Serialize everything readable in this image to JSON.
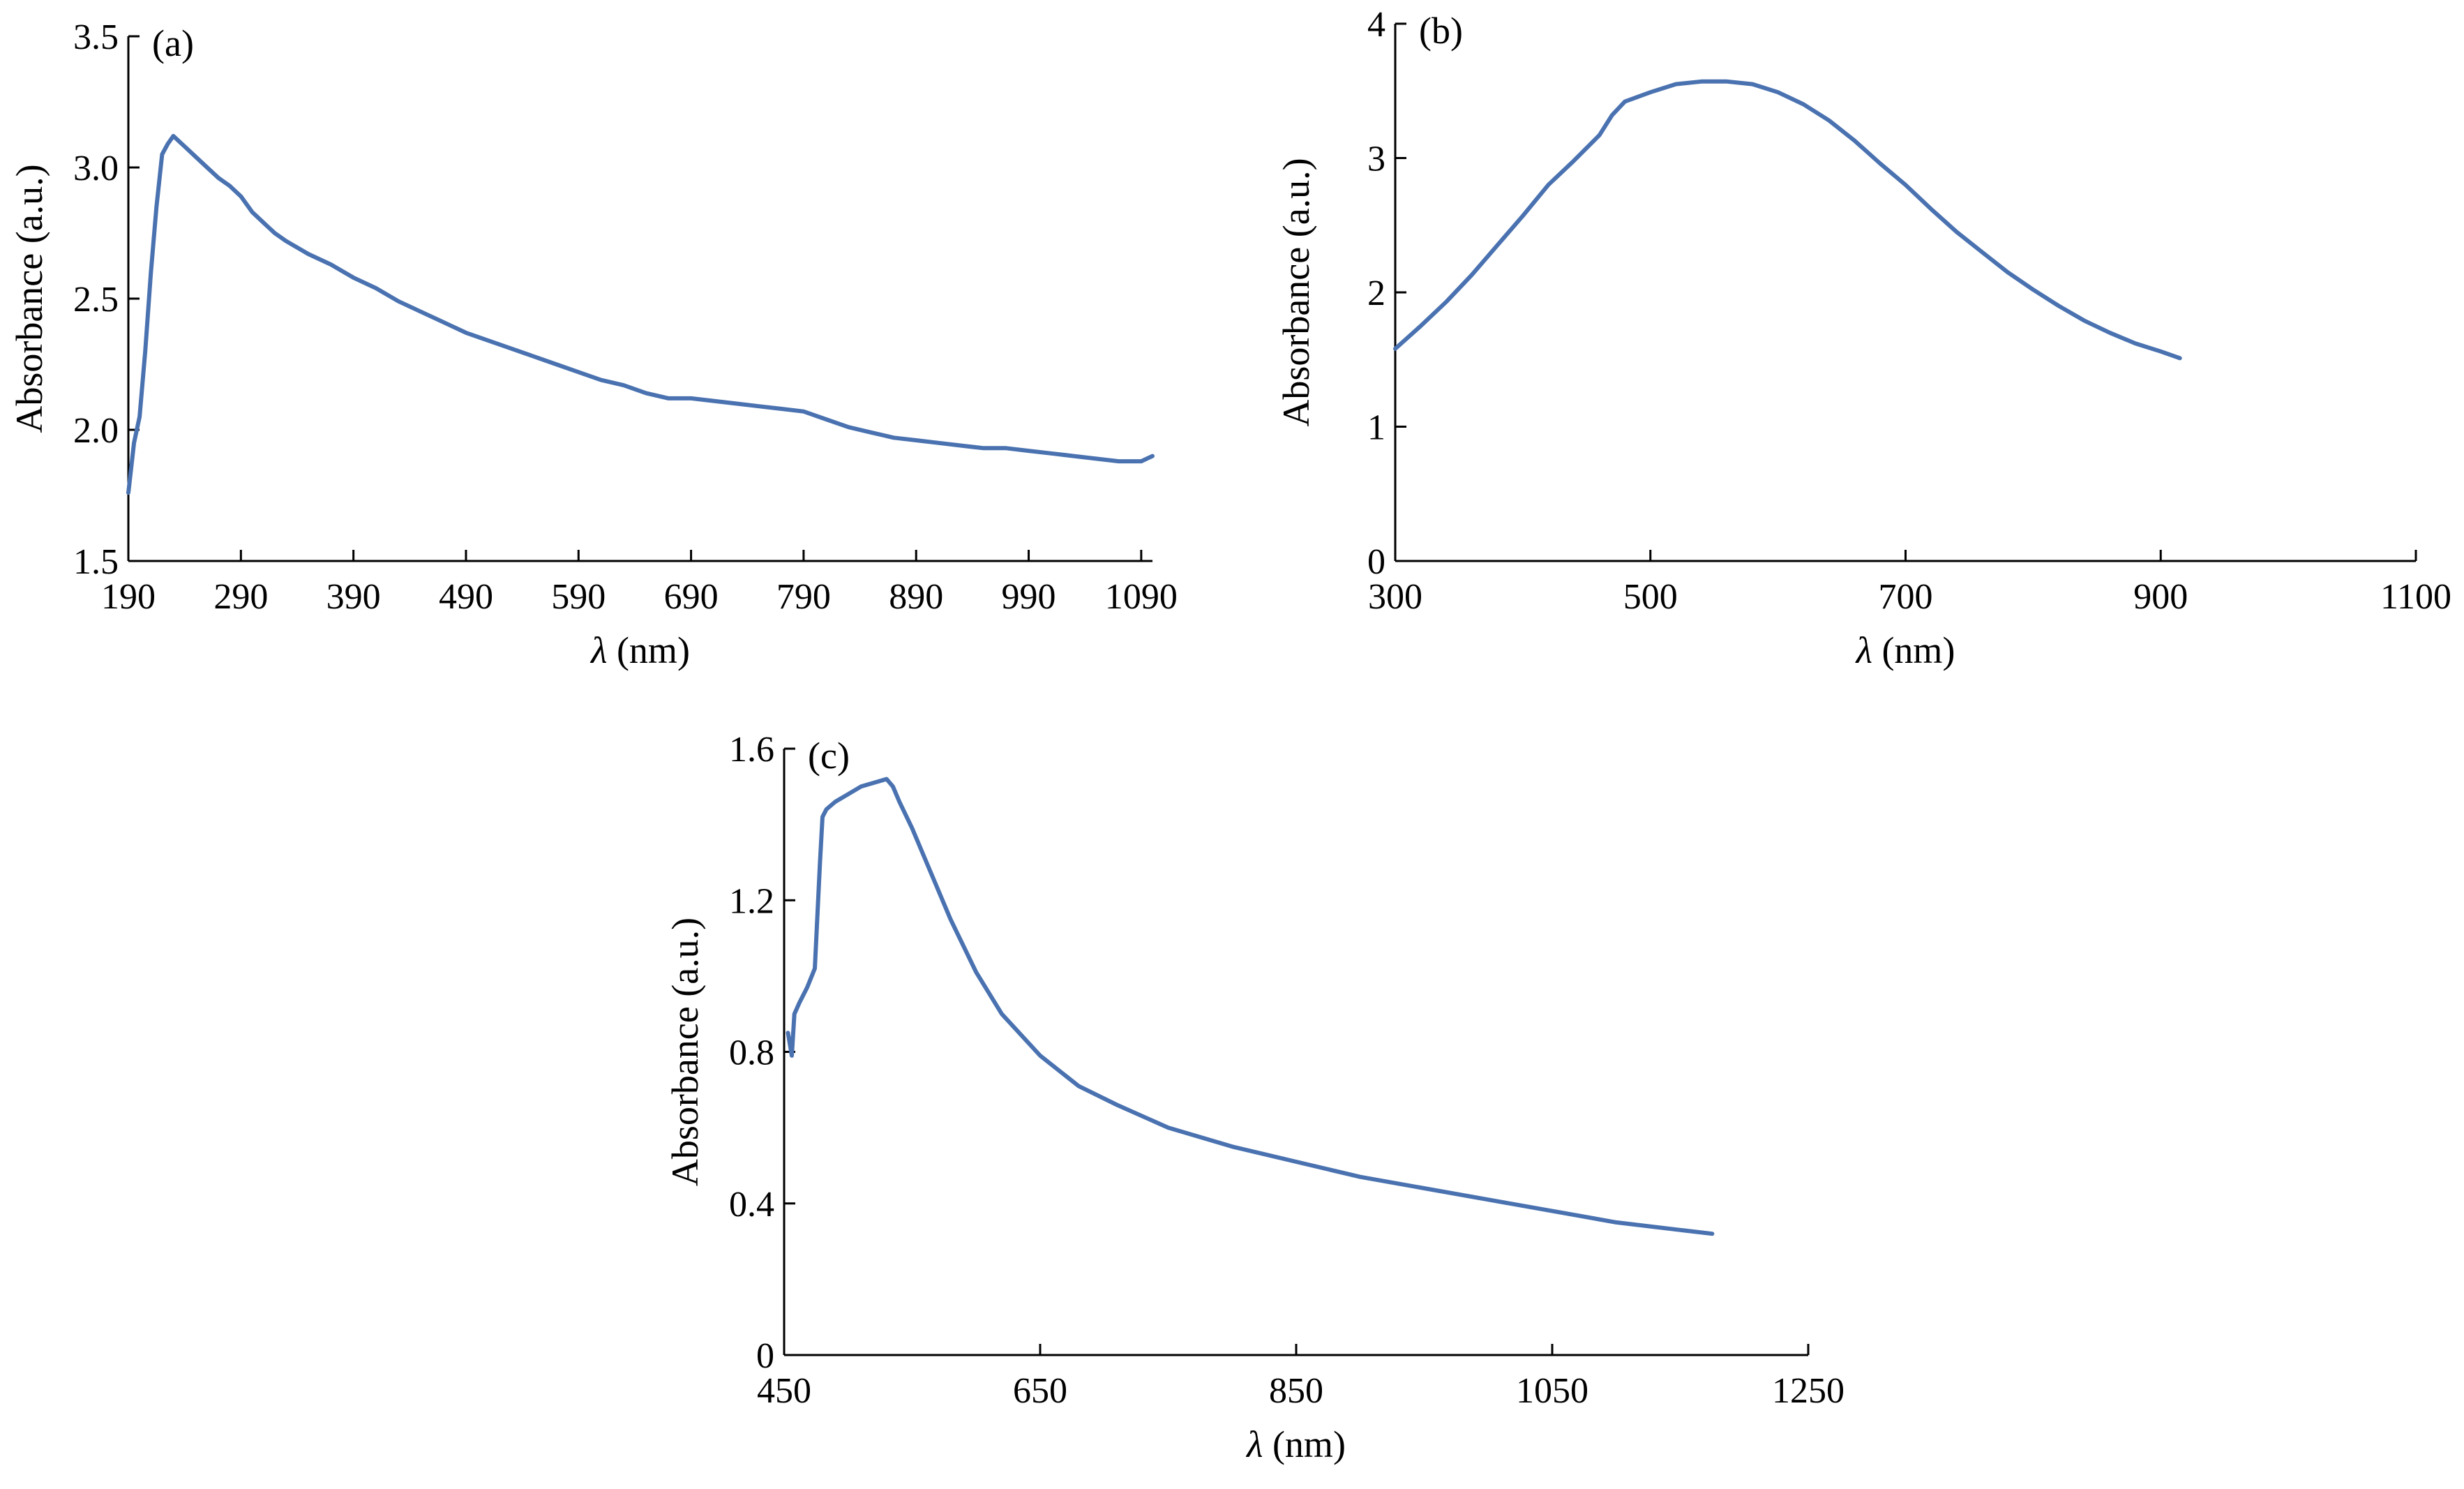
{
  "chart_data": [
    {
      "type": "line",
      "panel_label": "(a)",
      "xlabel_symbol": "λ",
      "xlabel_rest": " (nm)",
      "ylabel": "Absorbance (a.u.)",
      "xlim": [
        190,
        1100
      ],
      "ylim": [
        1.5,
        3.5
      ],
      "xticks": [
        190,
        290,
        390,
        490,
        590,
        690,
        790,
        890,
        990,
        1090
      ],
      "yticks": [
        1.5,
        2.0,
        2.5,
        3.0,
        3.5
      ],
      "xtick_labels": [
        "190",
        "290",
        "390",
        "490",
        "590",
        "690",
        "790",
        "890",
        "990",
        "1090"
      ],
      "ytick_labels": [
        "1.5",
        "2.0",
        "2.5",
        "3.0",
        "3.5"
      ],
      "color": "#4a72b0",
      "x": [
        190,
        195,
        200,
        205,
        210,
        215,
        220,
        225,
        230,
        235,
        240,
        250,
        260,
        270,
        280,
        290,
        300,
        310,
        320,
        330,
        350,
        370,
        390,
        410,
        430,
        450,
        470,
        490,
        510,
        530,
        550,
        570,
        590,
        610,
        630,
        650,
        670,
        690,
        710,
        730,
        750,
        770,
        790,
        810,
        830,
        850,
        870,
        890,
        910,
        930,
        950,
        970,
        990,
        1010,
        1030,
        1050,
        1070,
        1090,
        1100
      ],
      "y": [
        1.76,
        1.95,
        2.05,
        2.3,
        2.6,
        2.85,
        3.05,
        3.09,
        3.12,
        3.1,
        3.08,
        3.04,
        3.0,
        2.96,
        2.93,
        2.89,
        2.83,
        2.79,
        2.75,
        2.72,
        2.67,
        2.63,
        2.58,
        2.54,
        2.49,
        2.45,
        2.41,
        2.37,
        2.34,
        2.31,
        2.28,
        2.25,
        2.22,
        2.19,
        2.17,
        2.14,
        2.12,
        2.12,
        2.11,
        2.1,
        2.09,
        2.08,
        2.07,
        2.04,
        2.01,
        1.99,
        1.97,
        1.96,
        1.95,
        1.94,
        1.93,
        1.93,
        1.92,
        1.91,
        1.9,
        1.89,
        1.88,
        1.88,
        1.9
      ]
    },
    {
      "type": "line",
      "panel_label": "(b)",
      "xlabel_symbol": "λ",
      "xlabel_rest": " (nm)",
      "ylabel": "Absorbance (a.u.)",
      "xlim": [
        300,
        1100
      ],
      "ylim": [
        0,
        4
      ],
      "xticks": [
        300,
        500,
        700,
        900,
        1100
      ],
      "yticks": [
        0,
        1,
        2,
        3,
        4
      ],
      "xtick_labels": [
        "300",
        "500",
        "700",
        "900",
        "1100"
      ],
      "ytick_labels": [
        "0",
        "1",
        "2",
        "3",
        "4"
      ],
      "color": "#4a72b0",
      "x": [
        300,
        320,
        340,
        360,
        380,
        400,
        420,
        440,
        460,
        470,
        480,
        500,
        520,
        540,
        560,
        580,
        600,
        620,
        640,
        660,
        680,
        700,
        720,
        740,
        760,
        780,
        800,
        820,
        840,
        860,
        880,
        900,
        915
      ],
      "y": [
        1.58,
        1.75,
        1.93,
        2.13,
        2.35,
        2.57,
        2.8,
        2.98,
        3.17,
        3.32,
        3.42,
        3.49,
        3.55,
        3.57,
        3.57,
        3.55,
        3.49,
        3.4,
        3.28,
        3.13,
        2.96,
        2.8,
        2.62,
        2.45,
        2.3,
        2.15,
        2.02,
        1.9,
        1.79,
        1.7,
        1.62,
        1.56,
        1.51
      ]
    },
    {
      "type": "line",
      "panel_label": "(c)",
      "xlabel_symbol": "λ",
      "xlabel_rest": " (nm)",
      "ylabel": "Absorbance (a.u.)",
      "xlim": [
        450,
        1250
      ],
      "ylim": [
        0,
        1.6
      ],
      "xticks": [
        450,
        650,
        850,
        1050,
        1250
      ],
      "yticks": [
        0,
        0.4,
        0.8,
        1.2,
        1.6
      ],
      "xtick_labels": [
        "450",
        "650",
        "850",
        "1050",
        "1250"
      ],
      "ytick_labels": [
        "0",
        "0.4",
        "0.8",
        "1.2",
        "1.6"
      ],
      "color": "#4a72b0",
      "x": [
        453,
        456,
        458,
        462,
        468,
        474,
        478,
        480,
        483,
        490,
        500,
        510,
        520,
        530,
        535,
        540,
        550,
        560,
        580,
        600,
        620,
        650,
        680,
        710,
        750,
        800,
        850,
        900,
        950,
        1000,
        1050,
        1100,
        1150,
        1175
      ],
      "y": [
        0.85,
        0.79,
        0.9,
        0.93,
        0.97,
        1.02,
        1.3,
        1.42,
        1.44,
        1.46,
        1.48,
        1.5,
        1.51,
        1.52,
        1.5,
        1.46,
        1.39,
        1.31,
        1.15,
        1.01,
        0.9,
        0.79,
        0.71,
        0.66,
        0.6,
        0.55,
        0.51,
        0.47,
        0.44,
        0.41,
        0.38,
        0.35,
        0.33,
        0.32
      ]
    }
  ]
}
